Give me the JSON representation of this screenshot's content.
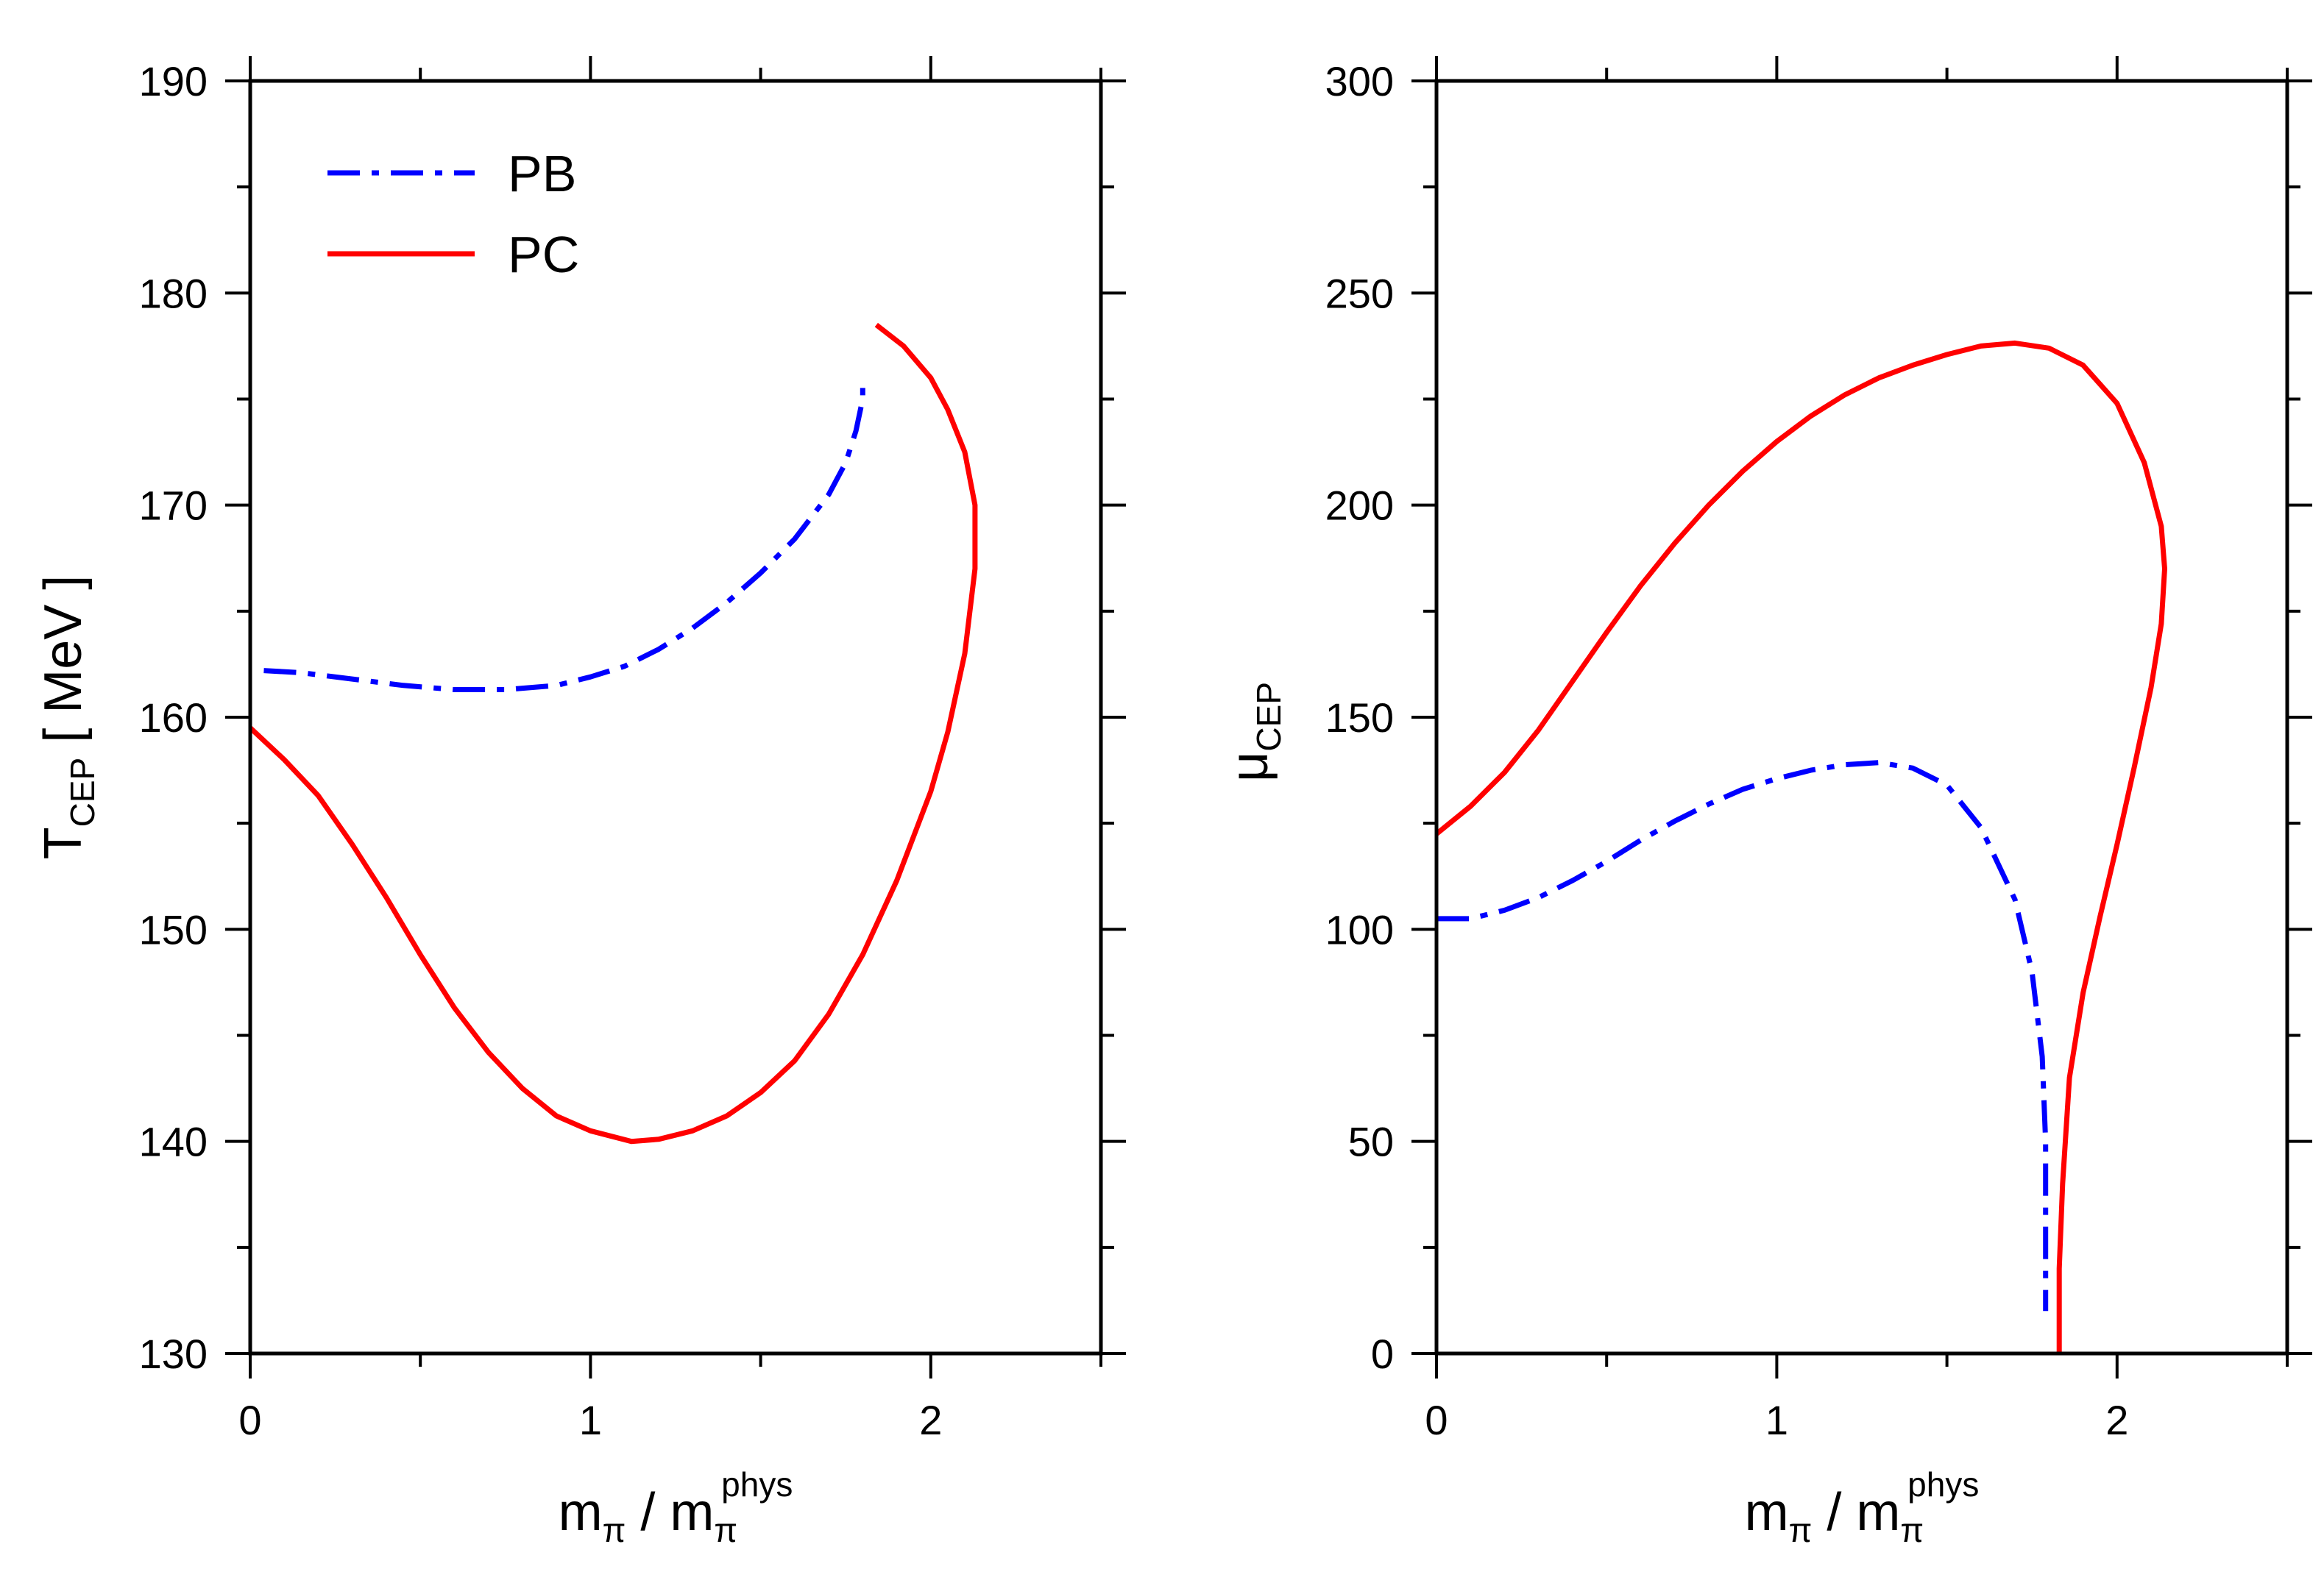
{
  "chart_data": [
    {
      "type": "line",
      "panel": "left",
      "xlim": [
        0,
        2.5
      ],
      "ylim": [
        130,
        190
      ],
      "xticks": [
        0,
        1,
        2
      ],
      "yticks": [
        130,
        140,
        150,
        160,
        170,
        180,
        190
      ],
      "x_minor_step": 0.5,
      "y_minor_step": 5,
      "xlabel": {
        "main": "m",
        "sub1": "π",
        "sep": " / m",
        "sub2": "π",
        "sup2": "phys"
      },
      "ylabel": {
        "main": "T",
        "sub": "CEP",
        "rest": " [ MeV ]"
      },
      "legend": {
        "position": "top-left",
        "entries": [
          "PB",
          "PC"
        ]
      },
      "series": [
        {
          "name": "PB",
          "color": "#0000ff",
          "style": "dash-dot",
          "points": [
            [
              0.04,
              162.2
            ],
            [
              0.15,
              162.1
            ],
            [
              0.3,
              161.8
            ],
            [
              0.45,
              161.5
            ],
            [
              0.6,
              161.3
            ],
            [
              0.75,
              161.3
            ],
            [
              0.9,
              161.5
            ],
            [
              1.0,
              161.9
            ],
            [
              1.1,
              162.4
            ],
            [
              1.2,
              163.2
            ],
            [
              1.3,
              164.2
            ],
            [
              1.4,
              165.4
            ],
            [
              1.5,
              166.8
            ],
            [
              1.6,
              168.4
            ],
            [
              1.7,
              170.5
            ],
            [
              1.75,
              172.0
            ],
            [
              1.78,
              173.5
            ],
            [
              1.8,
              175.0
            ],
            [
              1.8,
              176.0
            ]
          ]
        },
        {
          "name": "PC",
          "color": "#ff0000",
          "style": "solid",
          "points": [
            [
              0.0,
              159.5
            ],
            [
              0.1,
              158.0
            ],
            [
              0.2,
              156.3
            ],
            [
              0.3,
              154.0
            ],
            [
              0.4,
              151.5
            ],
            [
              0.5,
              148.8
            ],
            [
              0.6,
              146.3
            ],
            [
              0.7,
              144.2
            ],
            [
              0.8,
              142.5
            ],
            [
              0.9,
              141.2
            ],
            [
              1.0,
              140.5
            ],
            [
              1.12,
              140.0
            ],
            [
              1.2,
              140.1
            ],
            [
              1.3,
              140.5
            ],
            [
              1.4,
              141.2
            ],
            [
              1.5,
              142.3
            ],
            [
              1.6,
              143.8
            ],
            [
              1.7,
              146.0
            ],
            [
              1.8,
              148.8
            ],
            [
              1.9,
              152.3
            ],
            [
              2.0,
              156.5
            ],
            [
              2.05,
              159.3
            ],
            [
              2.1,
              163.0
            ],
            [
              2.13,
              167.0
            ],
            [
              2.13,
              170.0
            ],
            [
              2.1,
              172.5
            ],
            [
              2.05,
              174.5
            ],
            [
              2.0,
              176.0
            ],
            [
              1.92,
              177.5
            ],
            [
              1.84,
              178.5
            ]
          ]
        }
      ]
    },
    {
      "type": "line",
      "panel": "right",
      "xlim": [
        0,
        2.5
      ],
      "ylim": [
        0,
        300
      ],
      "xticks": [
        0,
        1,
        2
      ],
      "yticks": [
        0,
        50,
        100,
        150,
        200,
        250,
        300
      ],
      "x_minor_step": 0.5,
      "y_minor_step": 25,
      "xlabel": {
        "main": "m",
        "sub1": "π",
        "sep": " / m",
        "sub2": "π",
        "sup2": "phys"
      },
      "ylabel": {
        "main": "μ",
        "sub": "CEP",
        "rest": ""
      },
      "series": [
        {
          "name": "PB",
          "color": "#0000ff",
          "style": "dash-dot",
          "points": [
            [
              0.0,
              102.5
            ],
            [
              0.1,
              102.5
            ],
            [
              0.2,
              104.5
            ],
            [
              0.3,
              107.5
            ],
            [
              0.4,
              111.5
            ],
            [
              0.5,
              116.0
            ],
            [
              0.6,
              121.0
            ],
            [
              0.7,
              125.5
            ],
            [
              0.8,
              129.5
            ],
            [
              0.9,
              133.0
            ],
            [
              1.0,
              135.5
            ],
            [
              1.1,
              137.5
            ],
            [
              1.2,
              138.8
            ],
            [
              1.3,
              139.3
            ],
            [
              1.4,
              138.0
            ],
            [
              1.5,
              134.0
            ],
            [
              1.6,
              124.0
            ],
            [
              1.7,
              107.0
            ],
            [
              1.75,
              90.0
            ],
            [
              1.78,
              70.0
            ],
            [
              1.79,
              50.0
            ],
            [
              1.79,
              30.0
            ],
            [
              1.79,
              10.0
            ]
          ]
        },
        {
          "name": "PC",
          "color": "#ff0000",
          "style": "solid",
          "points": [
            [
              0.0,
              122.5
            ],
            [
              0.1,
              129.0
            ],
            [
              0.2,
              137.0
            ],
            [
              0.3,
              147.0
            ],
            [
              0.4,
              158.5
            ],
            [
              0.5,
              170.0
            ],
            [
              0.6,
              181.0
            ],
            [
              0.7,
              191.0
            ],
            [
              0.8,
              200.0
            ],
            [
              0.9,
              208.0
            ],
            [
              1.0,
              215.0
            ],
            [
              1.1,
              221.0
            ],
            [
              1.2,
              226.0
            ],
            [
              1.3,
              230.0
            ],
            [
              1.4,
              233.0
            ],
            [
              1.5,
              235.5
            ],
            [
              1.6,
              237.5
            ],
            [
              1.7,
              238.2
            ],
            [
              1.8,
              237.0
            ],
            [
              1.9,
              233.0
            ],
            [
              2.0,
              224.0
            ],
            [
              2.08,
              210.0
            ],
            [
              2.13,
              195.0
            ],
            [
              2.14,
              185.0
            ],
            [
              2.13,
              172.0
            ],
            [
              2.1,
              157.0
            ],
            [
              2.05,
              138.0
            ],
            [
              2.0,
              120.0
            ],
            [
              1.95,
              103.0
            ],
            [
              1.9,
              85.0
            ],
            [
              1.86,
              65.0
            ],
            [
              1.84,
              40.0
            ],
            [
              1.83,
              20.0
            ],
            [
              1.83,
              0.0
            ]
          ]
        }
      ]
    }
  ]
}
